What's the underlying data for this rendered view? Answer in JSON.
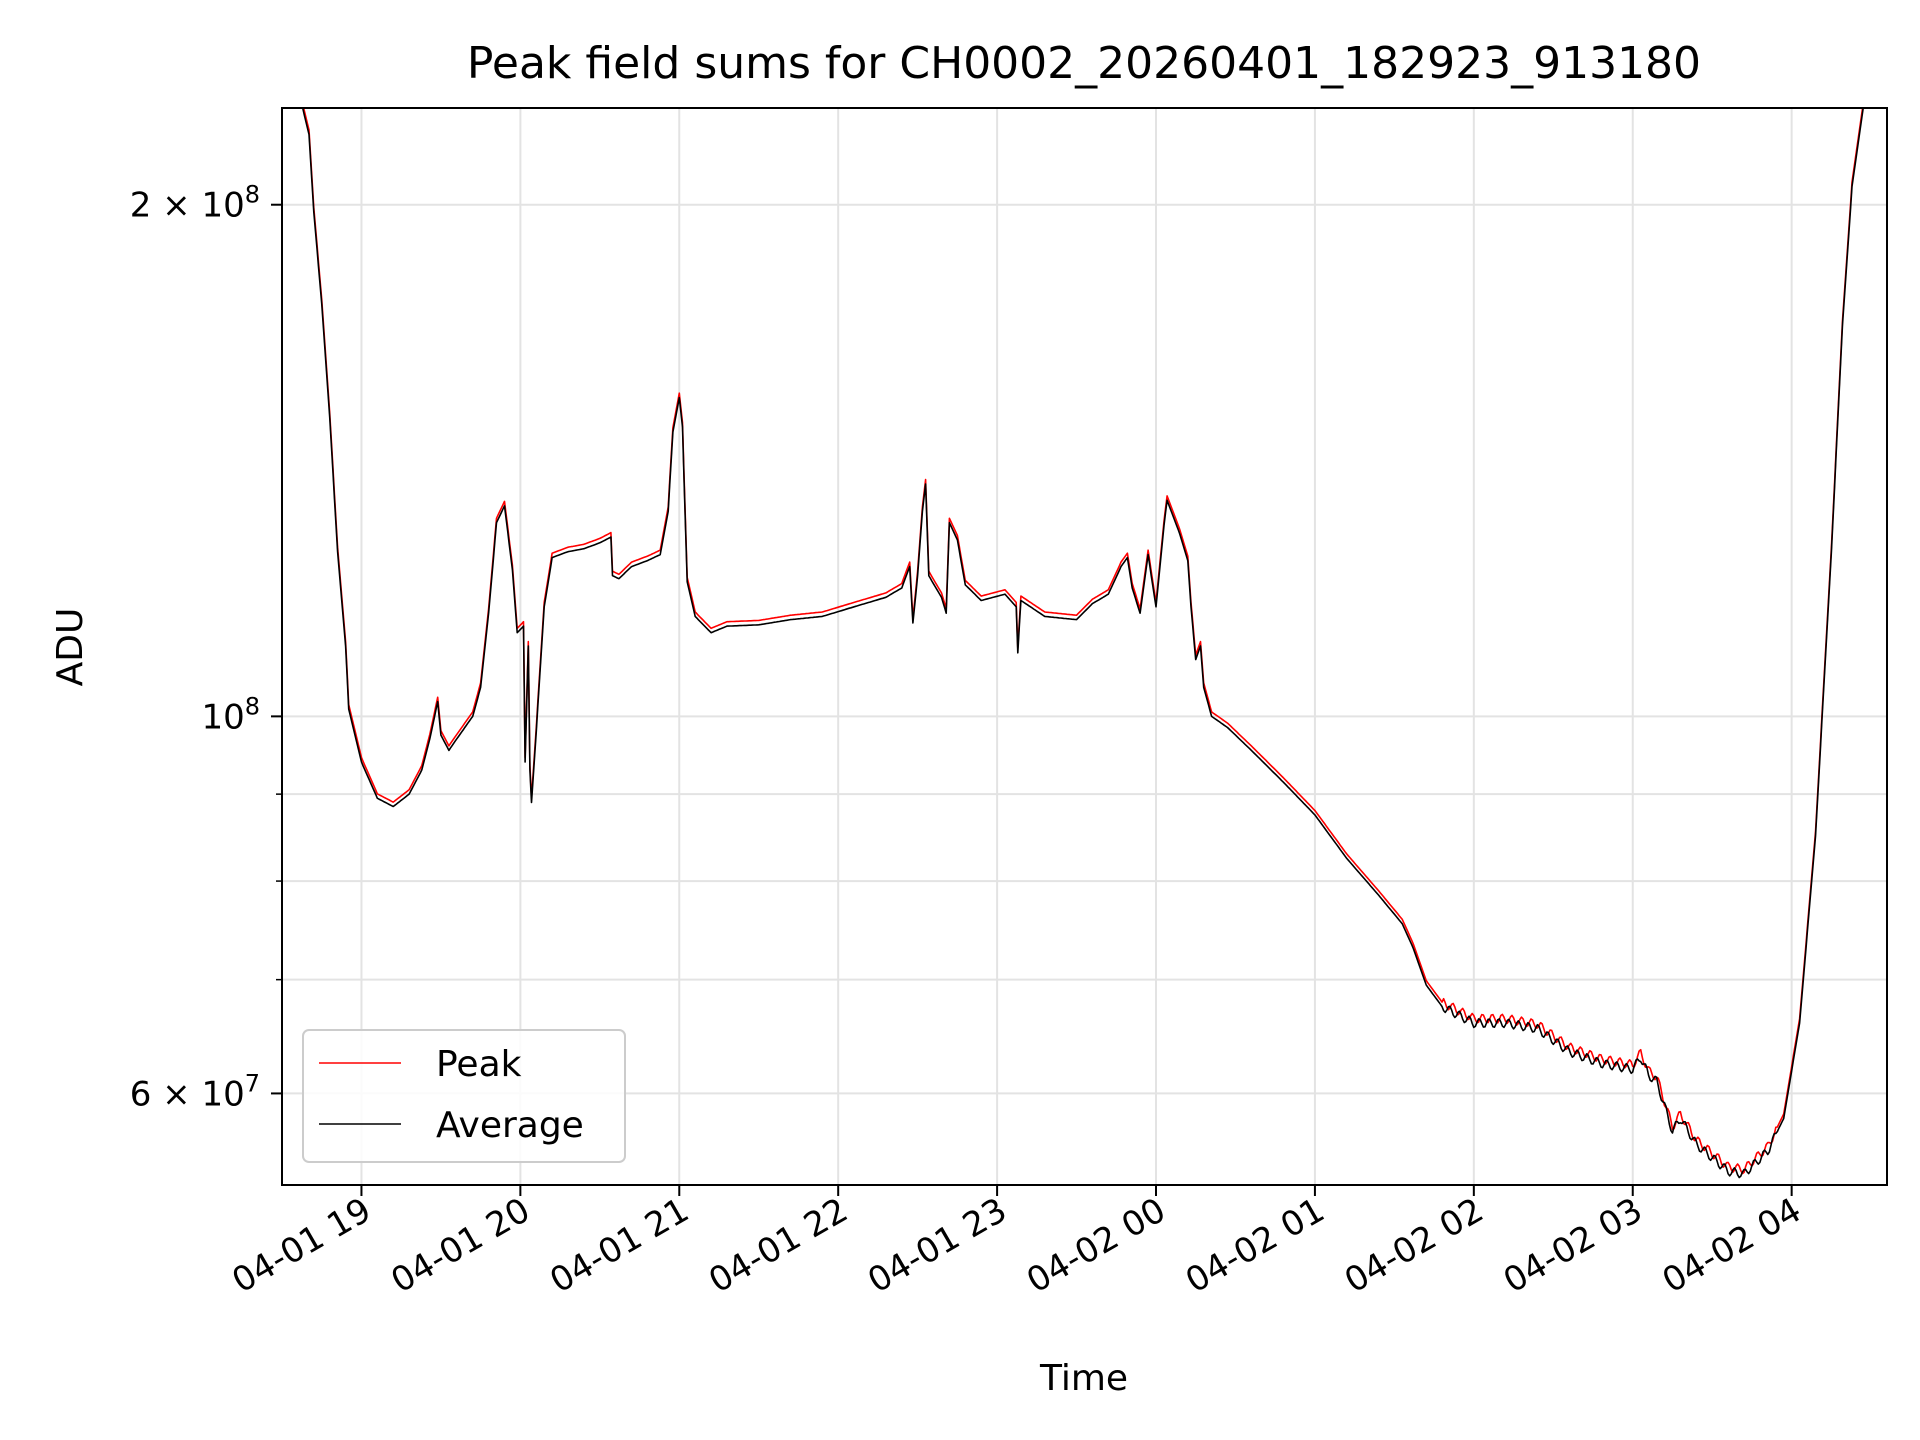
{
  "chart_data": {
    "type": "line",
    "title": "Peak field sums for CH0002_20260401_182923_913180",
    "xlabel": "Time",
    "ylabel": "ADU",
    "yscale": "log",
    "ylim": [
      53000000,
      228000000
    ],
    "xlim_hours": [
      -0.5,
      9.6
    ],
    "grid": true,
    "legend_position": "lower-left",
    "x_ticks": [
      {
        "hours": 0,
        "label": "04-01 19"
      },
      {
        "hours": 1,
        "label": "04-01 20"
      },
      {
        "hours": 2,
        "label": "04-01 21"
      },
      {
        "hours": 3,
        "label": "04-01 22"
      },
      {
        "hours": 4,
        "label": "04-01 23"
      },
      {
        "hours": 5,
        "label": "04-02 00"
      },
      {
        "hours": 6,
        "label": "04-02 01"
      },
      {
        "hours": 7,
        "label": "04-02 02"
      },
      {
        "hours": 8,
        "label": "04-02 03"
      },
      {
        "hours": 9,
        "label": "04-02 04"
      }
    ],
    "y_ticks_major": [
      {
        "value": 100000000,
        "base": "10",
        "exp": "8"
      },
      {
        "value": 200000000,
        "base": "2 × 10",
        "exp": "8"
      },
      {
        "value": 60000000,
        "base": "6 × 10",
        "exp": "7"
      }
    ],
    "y_ticks_minor": [
      70000000,
      80000000,
      90000000
    ],
    "series": [
      {
        "name": "Peak",
        "color": "#ff0000",
        "offset": 1.006
      },
      {
        "name": "Average",
        "color": "#000000",
        "offset": 1.0
      }
    ],
    "points": [
      [
        -0.5,
        228000000
      ],
      [
        -0.37,
        228000000
      ],
      [
        -0.33,
        220000000
      ],
      [
        -0.3,
        198000000
      ],
      [
        -0.25,
        175000000
      ],
      [
        -0.2,
        150000000
      ],
      [
        -0.15,
        125000000
      ],
      [
        -0.1,
        110000000
      ],
      [
        -0.08,
        101000000
      ],
      [
        0.0,
        94000000
      ],
      [
        0.1,
        89500000
      ],
      [
        0.2,
        88500000
      ],
      [
        0.3,
        90000000
      ],
      [
        0.38,
        93000000
      ],
      [
        0.43,
        97000000
      ],
      [
        0.47,
        101000000
      ],
      [
        0.48,
        102000000
      ],
      [
        0.5,
        97500000
      ],
      [
        0.55,
        95500000
      ],
      [
        0.6,
        97000000
      ],
      [
        0.7,
        100000000
      ],
      [
        0.75,
        104000000
      ],
      [
        0.8,
        115000000
      ],
      [
        0.85,
        130000000
      ],
      [
        0.9,
        133000000
      ],
      [
        0.95,
        122000000
      ],
      [
        0.98,
        112000000
      ],
      [
        1.02,
        113000000
      ],
      [
        1.03,
        94000000
      ],
      [
        1.05,
        110000000
      ],
      [
        1.06,
        93000000
      ],
      [
        1.07,
        89000000
      ],
      [
        1.1,
        98000000
      ],
      [
        1.15,
        116000000
      ],
      [
        1.2,
        124000000
      ],
      [
        1.3,
        125000000
      ],
      [
        1.4,
        125500000
      ],
      [
        1.5,
        126500000
      ],
      [
        1.57,
        127500000
      ],
      [
        1.58,
        121000000
      ],
      [
        1.62,
        120500000
      ],
      [
        1.7,
        122500000
      ],
      [
        1.8,
        123500000
      ],
      [
        1.88,
        124500000
      ],
      [
        1.93,
        132000000
      ],
      [
        1.96,
        147000000
      ],
      [
        2.0,
        154000000
      ],
      [
        2.02,
        148000000
      ],
      [
        2.05,
        120000000
      ],
      [
        2.1,
        114500000
      ],
      [
        2.2,
        112000000
      ],
      [
        2.3,
        113000000
      ],
      [
        2.5,
        113200000
      ],
      [
        2.7,
        114000000
      ],
      [
        2.9,
        114500000
      ],
      [
        3.1,
        116000000
      ],
      [
        3.3,
        117500000
      ],
      [
        3.4,
        119000000
      ],
      [
        3.45,
        122500000
      ],
      [
        3.47,
        113500000
      ],
      [
        3.5,
        121000000
      ],
      [
        3.53,
        132000000
      ],
      [
        3.55,
        137000000
      ],
      [
        3.57,
        121000000
      ],
      [
        3.65,
        117500000
      ],
      [
        3.68,
        115000000
      ],
      [
        3.7,
        130000000
      ],
      [
        3.75,
        127000000
      ],
      [
        3.8,
        119500000
      ],
      [
        3.9,
        117000000
      ],
      [
        4.05,
        118000000
      ],
      [
        4.12,
        116000000
      ],
      [
        4.13,
        109000000
      ],
      [
        4.15,
        117000000
      ],
      [
        4.3,
        114500000
      ],
      [
        4.5,
        114000000
      ],
      [
        4.6,
        116500000
      ],
      [
        4.7,
        118000000
      ],
      [
        4.78,
        122500000
      ],
      [
        4.82,
        124000000
      ],
      [
        4.85,
        119000000
      ],
      [
        4.9,
        115000000
      ],
      [
        4.95,
        124500000
      ],
      [
        5.0,
        116000000
      ],
      [
        5.05,
        129500000
      ],
      [
        5.07,
        134000000
      ],
      [
        5.15,
        128000000
      ],
      [
        5.2,
        123500000
      ],
      [
        5.22,
        116000000
      ],
      [
        5.25,
        108000000
      ],
      [
        5.28,
        110000000
      ],
      [
        5.3,
        104000000
      ],
      [
        5.35,
        100000000
      ],
      [
        5.45,
        98500000
      ],
      [
        5.6,
        95500000
      ],
      [
        5.8,
        91500000
      ],
      [
        6.0,
        87500000
      ],
      [
        6.2,
        82500000
      ],
      [
        6.4,
        78500000
      ],
      [
        6.55,
        75500000
      ],
      [
        6.62,
        73000000
      ],
      [
        6.7,
        69500000
      ],
      [
        6.8,
        67500000
      ],
      [
        7.0,
        66000000
      ],
      [
        7.2,
        66000000
      ],
      [
        7.4,
        65500000
      ],
      [
        7.6,
        63500000
      ],
      [
        7.8,
        62500000
      ],
      [
        8.0,
        62000000
      ],
      [
        8.05,
        63000000
      ],
      [
        8.1,
        61500000
      ],
      [
        8.15,
        61000000
      ],
      [
        8.2,
        59000000
      ],
      [
        8.25,
        57000000
      ],
      [
        8.3,
        58000000
      ],
      [
        8.4,
        56000000
      ],
      [
        8.5,
        55000000
      ],
      [
        8.6,
        54000000
      ],
      [
        8.7,
        53800000
      ],
      [
        8.85,
        55500000
      ],
      [
        8.95,
        58000000
      ],
      [
        9.05,
        66000000
      ],
      [
        9.15,
        85000000
      ],
      [
        9.25,
        125000000
      ],
      [
        9.32,
        170000000
      ],
      [
        9.38,
        205000000
      ],
      [
        9.45,
        228000000
      ],
      [
        9.6,
        228000000
      ]
    ]
  }
}
